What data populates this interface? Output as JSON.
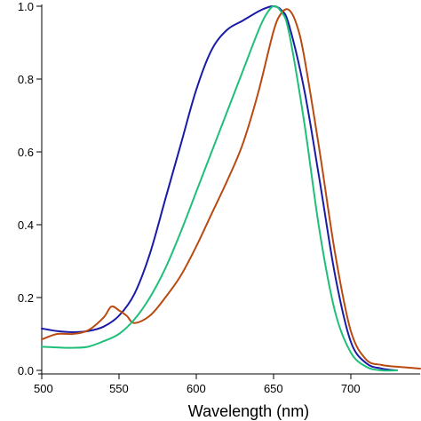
{
  "chart_data": {
    "type": "line",
    "title": "",
    "xlabel": "Wavelength (nm)",
    "ylabel": "",
    "xlim": [
      500,
      745
    ],
    "ylim": [
      0,
      1.0
    ],
    "grid": false,
    "legend": "none",
    "x_ticks": [
      500,
      550,
      600,
      650,
      700
    ],
    "x_tick_labels": [
      "500",
      "550",
      "600",
      "650",
      "700"
    ],
    "y_ticks": [
      0,
      0.2,
      0.4,
      0.6,
      0.8,
      1.0
    ],
    "y_tick_labels": [
      "0.0",
      "0.2",
      "0.4",
      "0.6",
      "0.8",
      "1.0"
    ],
    "series": [
      {
        "color": "#1a1aa8",
        "x": [
          500,
          510,
          520,
          530,
          540,
          550,
          560,
          570,
          580,
          590,
          600,
          610,
          620,
          630,
          640,
          645,
          650,
          655,
          660,
          670,
          680,
          690,
          700,
          710,
          720,
          730
        ],
        "y": [
          0.115,
          0.108,
          0.105,
          0.108,
          0.12,
          0.15,
          0.21,
          0.32,
          0.47,
          0.62,
          0.77,
          0.88,
          0.935,
          0.96,
          0.985,
          0.995,
          1.0,
          0.99,
          0.95,
          0.77,
          0.52,
          0.26,
          0.08,
          0.02,
          0.005,
          0.0
        ]
      },
      {
        "color": "#b84a12",
        "x": [
          500,
          510,
          520,
          530,
          540,
          545,
          550,
          555,
          560,
          570,
          580,
          590,
          600,
          610,
          620,
          630,
          640,
          650,
          655,
          660,
          665,
          670,
          680,
          690,
          700,
          710,
          720,
          730,
          745
        ],
        "y": [
          0.085,
          0.1,
          0.1,
          0.11,
          0.145,
          0.175,
          0.165,
          0.15,
          0.13,
          0.15,
          0.2,
          0.26,
          0.34,
          0.43,
          0.52,
          0.62,
          0.76,
          0.93,
          0.98,
          0.99,
          0.95,
          0.86,
          0.6,
          0.32,
          0.11,
          0.03,
          0.015,
          0.01,
          0.005
        ]
      },
      {
        "color": "#1fbf7a",
        "x": [
          500,
          510,
          520,
          530,
          540,
          550,
          560,
          570,
          580,
          590,
          600,
          610,
          620,
          630,
          640,
          645,
          650,
          655,
          660,
          670,
          680,
          690,
          700,
          710,
          720,
          730
        ],
        "y": [
          0.065,
          0.063,
          0.062,
          0.065,
          0.08,
          0.1,
          0.14,
          0.2,
          0.28,
          0.38,
          0.49,
          0.6,
          0.71,
          0.82,
          0.93,
          0.975,
          1.0,
          0.985,
          0.93,
          0.68,
          0.38,
          0.16,
          0.05,
          0.01,
          0.0,
          0.0
        ]
      }
    ]
  }
}
